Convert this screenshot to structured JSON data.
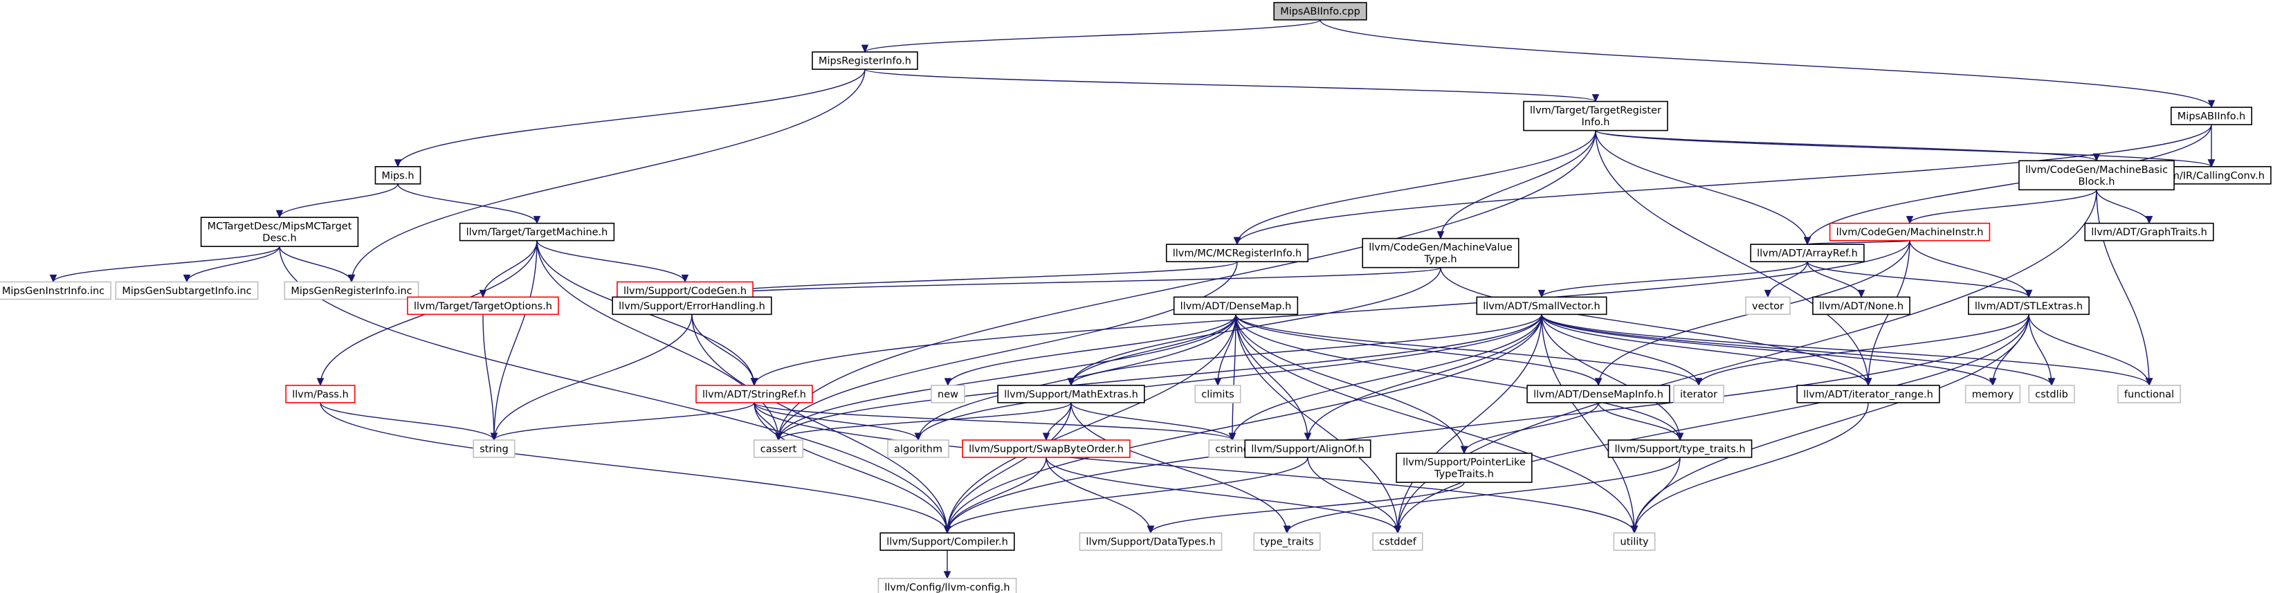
{
  "diagram": {
    "colors": {
      "edge": "#191970",
      "normal_border": "#000000",
      "gray_border": "#bfbfbf",
      "red_border": "#ff0000",
      "root_fill": "#bfbfbf",
      "fill": "#ffffff",
      "text": "#000000"
    },
    "nodes": [
      {
        "id": "root",
        "lines": [
          "MipsABIInfo.cpp"
        ],
        "style": "root"
      },
      {
        "id": "mri",
        "lines": [
          "MipsRegisterInfo.h"
        ],
        "style": "normal"
      },
      {
        "id": "abih",
        "lines": [
          "MipsABIInfo.h"
        ],
        "style": "normal"
      },
      {
        "id": "tri",
        "lines": [
          "llvm/Target/TargetRegister",
          "Info.h"
        ],
        "style": "normal"
      },
      {
        "id": "mips",
        "lines": [
          "Mips.h"
        ],
        "style": "normal"
      },
      {
        "id": "cc",
        "lines": [
          "llvm/IR/CallingConv.h"
        ],
        "style": "normal"
      },
      {
        "id": "mbb",
        "lines": [
          "llvm/CodeGen/MachineBasic",
          "Block.h"
        ],
        "style": "normal"
      },
      {
        "id": "mctd",
        "lines": [
          "MCTargetDesc/MipsMCTarget",
          "Desc.h"
        ],
        "style": "normal"
      },
      {
        "id": "tm",
        "lines": [
          "llvm/Target/TargetMachine.h"
        ],
        "style": "normal"
      },
      {
        "id": "mi",
        "lines": [
          "llvm/CodeGen/MachineInstr.h"
        ],
        "style": "red"
      },
      {
        "id": "gt",
        "lines": [
          "llvm/ADT/GraphTraits.h"
        ],
        "style": "normal"
      },
      {
        "id": "gii",
        "lines": [
          "MipsGenInstrInfo.inc"
        ],
        "style": "gray"
      },
      {
        "id": "gsi",
        "lines": [
          "MipsGenSubtargetInfo.inc"
        ],
        "style": "gray"
      },
      {
        "id": "gri",
        "lines": [
          "MipsGenRegisterInfo.inc"
        ],
        "style": "gray"
      },
      {
        "id": "scg",
        "lines": [
          "llvm/Support/CodeGen.h"
        ],
        "style": "red"
      },
      {
        "id": "mcri",
        "lines": [
          "llvm/MC/MCRegisterInfo.h"
        ],
        "style": "normal"
      },
      {
        "id": "mvt",
        "lines": [
          "llvm/CodeGen/MachineValue",
          "Type.h"
        ],
        "style": "normal"
      },
      {
        "id": "ar",
        "lines": [
          "llvm/ADT/ArrayRef.h"
        ],
        "style": "normal"
      },
      {
        "id": "to",
        "lines": [
          "llvm/Target/TargetOptions.h"
        ],
        "style": "red"
      },
      {
        "id": "eh",
        "lines": [
          "llvm/Support/ErrorHandling.h"
        ],
        "style": "normal"
      },
      {
        "id": "dm",
        "lines": [
          "llvm/ADT/DenseMap.h"
        ],
        "style": "normal"
      },
      {
        "id": "sv",
        "lines": [
          "llvm/ADT/SmallVector.h"
        ],
        "style": "normal"
      },
      {
        "id": "vector",
        "lines": [
          "vector"
        ],
        "style": "gray"
      },
      {
        "id": "none",
        "lines": [
          "llvm/ADT/None.h"
        ],
        "style": "normal"
      },
      {
        "id": "ste",
        "lines": [
          "llvm/ADT/STLExtras.h"
        ],
        "style": "normal"
      },
      {
        "id": "pass",
        "lines": [
          "llvm/Pass.h"
        ],
        "style": "red"
      },
      {
        "id": "sr",
        "lines": [
          "llvm/ADT/StringRef.h"
        ],
        "style": "red"
      },
      {
        "id": "new",
        "lines": [
          "new"
        ],
        "style": "gray"
      },
      {
        "id": "me",
        "lines": [
          "llvm/Support/MathExtras.h"
        ],
        "style": "normal"
      },
      {
        "id": "climits",
        "lines": [
          "climits"
        ],
        "style": "gray"
      },
      {
        "id": "dmi",
        "lines": [
          "llvm/ADT/DenseMapInfo.h"
        ],
        "style": "normal"
      },
      {
        "id": "iterator",
        "lines": [
          "iterator"
        ],
        "style": "gray"
      },
      {
        "id": "itr",
        "lines": [
          "llvm/ADT/iterator_range.h"
        ],
        "style": "normal"
      },
      {
        "id": "memory",
        "lines": [
          "memory"
        ],
        "style": "gray"
      },
      {
        "id": "cstdlib",
        "lines": [
          "cstdlib"
        ],
        "style": "gray"
      },
      {
        "id": "functional",
        "lines": [
          "functional"
        ],
        "style": "gray"
      },
      {
        "id": "string",
        "lines": [
          "string"
        ],
        "style": "gray"
      },
      {
        "id": "cassert",
        "lines": [
          "cassert"
        ],
        "style": "gray"
      },
      {
        "id": "algorithm",
        "lines": [
          "algorithm"
        ],
        "style": "gray"
      },
      {
        "id": "sbo",
        "lines": [
          "llvm/Support/SwapByteOrder.h"
        ],
        "style": "red"
      },
      {
        "id": "cstring",
        "lines": [
          "cstring"
        ],
        "style": "gray"
      },
      {
        "id": "ao",
        "lines": [
          "llvm/Support/AlignOf.h"
        ],
        "style": "normal"
      },
      {
        "id": "ptl",
        "lines": [
          "llvm/Support/PointerLike",
          "TypeTraits.h"
        ],
        "style": "normal"
      },
      {
        "id": "tt",
        "lines": [
          "llvm/Support/type_traits.h"
        ],
        "style": "normal"
      },
      {
        "id": "comp",
        "lines": [
          "llvm/Support/Compiler.h"
        ],
        "style": "normal"
      },
      {
        "id": "dt",
        "lines": [
          "llvm/Support/DataTypes.h"
        ],
        "style": "gray"
      },
      {
        "id": "type_traits",
        "lines": [
          "type_traits"
        ],
        "style": "gray"
      },
      {
        "id": "cstddef",
        "lines": [
          "cstddef"
        ],
        "style": "gray"
      },
      {
        "id": "utility",
        "lines": [
          "utility"
        ],
        "style": "gray"
      },
      {
        "id": "cfg",
        "lines": [
          "llvm/Config/llvm-config.h"
        ],
        "style": "gray"
      }
    ],
    "edges": [
      [
        "root",
        "mri"
      ],
      [
        "root",
        "abih"
      ],
      [
        "mri",
        "mips"
      ],
      [
        "mri",
        "tri"
      ],
      [
        "mri",
        "gri"
      ],
      [
        "abih",
        "cc"
      ],
      [
        "abih",
        "mcri"
      ],
      [
        "abih",
        "ar"
      ],
      [
        "tri",
        "cc"
      ],
      [
        "tri",
        "mbb"
      ],
      [
        "tri",
        "mcri"
      ],
      [
        "tri",
        "mvt"
      ],
      [
        "tri",
        "ar"
      ],
      [
        "tri",
        "cassert"
      ],
      [
        "tri",
        "itr"
      ],
      [
        "mips",
        "mctd"
      ],
      [
        "mips",
        "tm"
      ],
      [
        "mctd",
        "gii"
      ],
      [
        "mctd",
        "gsi"
      ],
      [
        "mctd",
        "gri"
      ],
      [
        "mctd",
        "comp"
      ],
      [
        "tm",
        "scg"
      ],
      [
        "tm",
        "to"
      ],
      [
        "tm",
        "pass"
      ],
      [
        "tm",
        "sr"
      ],
      [
        "tm",
        "string"
      ],
      [
        "tm",
        "cassert"
      ],
      [
        "mbb",
        "mi"
      ],
      [
        "mbb",
        "gt"
      ],
      [
        "mbb",
        "functional"
      ],
      [
        "mbb",
        "cstddef"
      ],
      [
        "mi",
        "ar"
      ],
      [
        "mi",
        "ste"
      ],
      [
        "mi",
        "sr"
      ],
      [
        "mi",
        "itr"
      ],
      [
        "mi",
        "dmi"
      ],
      [
        "scg",
        "eh"
      ],
      [
        "mcri",
        "eh"
      ],
      [
        "mcri",
        "cassert"
      ],
      [
        "mvt",
        "eh"
      ],
      [
        "mvt",
        "me"
      ],
      [
        "mvt",
        "itr"
      ],
      [
        "ar",
        "sv"
      ],
      [
        "ar",
        "vector"
      ],
      [
        "ar",
        "none"
      ],
      [
        "ar",
        "ste"
      ],
      [
        "ste",
        "iterator"
      ],
      [
        "ste",
        "memory"
      ],
      [
        "ste",
        "cstdlib"
      ],
      [
        "ste",
        "functional"
      ],
      [
        "ste",
        "cstddef"
      ],
      [
        "ste",
        "utility"
      ],
      [
        "ste",
        "comp"
      ],
      [
        "to",
        "string"
      ],
      [
        "eh",
        "sr"
      ],
      [
        "eh",
        "comp"
      ],
      [
        "eh",
        "string"
      ],
      [
        "dm",
        "dmi"
      ],
      [
        "dm",
        "me"
      ],
      [
        "dm",
        "ao"
      ],
      [
        "dm",
        "ptl"
      ],
      [
        "dm",
        "tt"
      ],
      [
        "dm",
        "comp"
      ],
      [
        "dm",
        "new"
      ],
      [
        "dm",
        "climits"
      ],
      [
        "dm",
        "cstring"
      ],
      [
        "dm",
        "cassert"
      ],
      [
        "dm",
        "algorithm"
      ],
      [
        "dm",
        "iterator"
      ],
      [
        "dm",
        "utility"
      ],
      [
        "dm",
        "cstddef"
      ],
      [
        "sv",
        "me"
      ],
      [
        "sv",
        "ao"
      ],
      [
        "sv",
        "tt"
      ],
      [
        "sv",
        "comp"
      ],
      [
        "sv",
        "cassert"
      ],
      [
        "sv",
        "cstring"
      ],
      [
        "sv",
        "algorithm"
      ],
      [
        "sv",
        "iterator"
      ],
      [
        "sv",
        "memory"
      ],
      [
        "sv",
        "cstdlib"
      ],
      [
        "sv",
        "functional"
      ],
      [
        "sv",
        "cstddef"
      ],
      [
        "sv",
        "utility"
      ],
      [
        "sv",
        "itr"
      ],
      [
        "pass",
        "string"
      ],
      [
        "pass",
        "comp"
      ],
      [
        "sr",
        "comp"
      ],
      [
        "sr",
        "string"
      ],
      [
        "sr",
        "cassert"
      ],
      [
        "sr",
        "algorithm"
      ],
      [
        "sr",
        "cstring"
      ],
      [
        "sr",
        "utility"
      ],
      [
        "me",
        "sbo"
      ],
      [
        "me",
        "comp"
      ],
      [
        "me",
        "cassert"
      ],
      [
        "me",
        "cstring"
      ],
      [
        "me",
        "type_traits"
      ],
      [
        "dmi",
        "ptl"
      ],
      [
        "dmi",
        "tt"
      ],
      [
        "itr",
        "utility"
      ],
      [
        "sbo",
        "comp"
      ],
      [
        "sbo",
        "dt"
      ],
      [
        "sbo",
        "cstddef"
      ],
      [
        "ao",
        "comp"
      ],
      [
        "ao",
        "cstddef"
      ],
      [
        "ptl",
        "dt"
      ],
      [
        "tt",
        "type_traits"
      ],
      [
        "tt",
        "utility"
      ],
      [
        "comp",
        "cfg"
      ]
    ]
  }
}
